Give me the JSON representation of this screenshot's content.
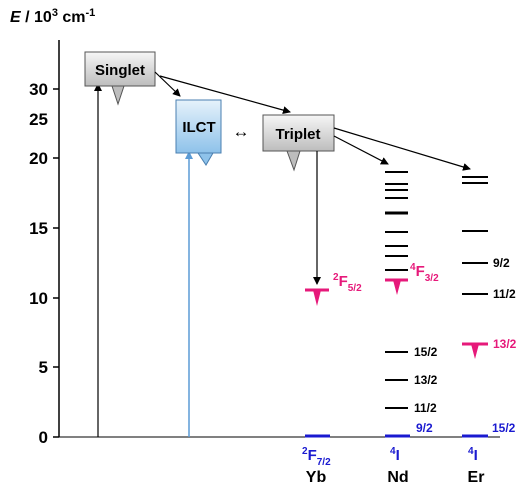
{
  "axis": {
    "label_italic": "E",
    "label_rest": " / 10",
    "label_sup": "3",
    "label_unit": " cm",
    "label_unit_sup": "-1",
    "ticks": [
      "30",
      "25",
      "20",
      "15",
      "10",
      "5",
      "0"
    ]
  },
  "states": {
    "singlet": "Singlet",
    "ilct": "ILCT",
    "triplet": "Triplet",
    "exchange": "↔"
  },
  "yb": {
    "excited_main": "F",
    "excited_pre": "2",
    "excited_sub": "5/2",
    "ground_main": "F",
    "ground_pre": "2",
    "ground_sub": "7/2",
    "name": "Yb"
  },
  "nd": {
    "emitting_main": "F",
    "emitting_pre": "4",
    "emitting_sub": "3/2",
    "levels": [
      "15/2",
      "13/2",
      "11/2",
      "9/2"
    ],
    "ground_main": "I",
    "ground_pre": "4",
    "name": "Nd"
  },
  "er": {
    "levels": [
      "9/2",
      "11/2",
      "13/2",
      "15/2"
    ],
    "ground_main": "I",
    "ground_pre": "4",
    "name": "Er"
  },
  "colors": {
    "pink": "#e6197a",
    "blue": "#1a1ad0",
    "ilct_arrow": "#5b9bd5"
  }
}
